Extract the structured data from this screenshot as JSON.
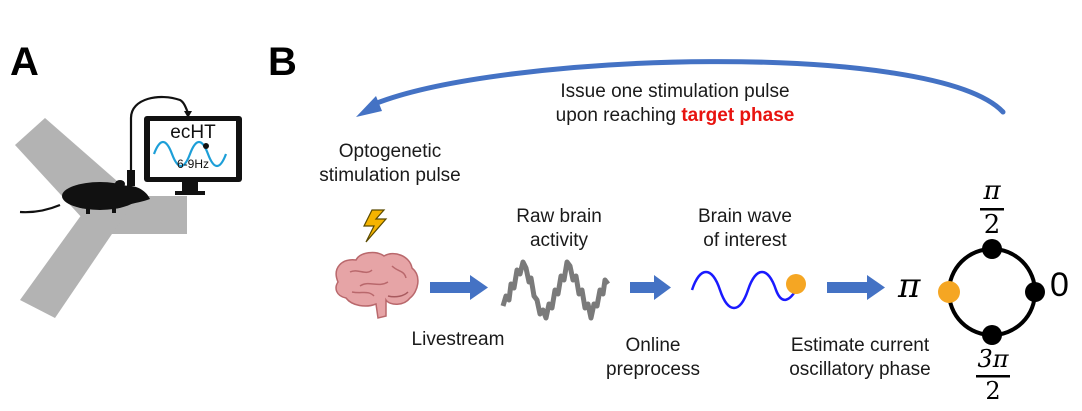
{
  "panels": {
    "a": "A",
    "b": "B"
  },
  "monitor": {
    "title": "ecHT",
    "band": "6-9Hz"
  },
  "top_note": {
    "line1": "Issue one stimulation pulse",
    "line2_prefix": "upon reaching ",
    "line2_highlight": "target phase"
  },
  "stimulus": {
    "line1": "Optogenetic",
    "line2": "stimulation pulse"
  },
  "raw": {
    "line1": "Raw brain",
    "line2": "activity"
  },
  "wave": {
    "line1": "Brain wave",
    "line2": "of interest"
  },
  "steps": {
    "livestream": "Livestream",
    "preprocess_1": "Online",
    "preprocess_2": "preprocess",
    "estimate_1": "Estimate current",
    "estimate_2": "oscillatory phase"
  },
  "phase": {
    "pi": "π",
    "zero": "0",
    "half_num": "π",
    "half_den": "2",
    "three_half_num": "3π",
    "three_half_den": "2"
  },
  "colors": {
    "arrow": "#4472c4",
    "highlight": "#e8130f",
    "marker": "#f5a623",
    "ewave": "#1a1aff",
    "maze": "#b3b3b3"
  },
  "icons": {
    "stim": "lightning-bolt-icon",
    "brain": "brain-icon",
    "mouse": "mouse-icon",
    "monitor": "monitor-icon"
  }
}
